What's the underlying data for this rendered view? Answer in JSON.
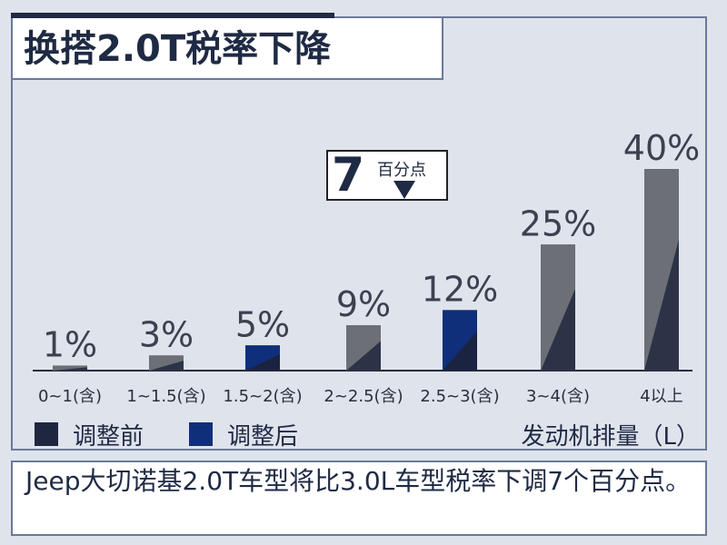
{
  "title": "换搭2.0T税率下降",
  "annotation": {
    "value": "7",
    "unit": "百分点"
  },
  "legend": [
    {
      "label": "调整前",
      "color": "#1f2740"
    },
    {
      "label": "调整后",
      "color": "#0f2f7a"
    }
  ],
  "x_axis_label": "发动机排量（L）",
  "caption": "Jeep大切诺基2.0T车型将比3.0L车型税率下调7个百分点。",
  "chart_data": {
    "type": "bar",
    "categories": [
      "0~1(含)",
      "1~1.5(含)",
      "1.5~2(含)",
      "2~2.5(含)",
      "2.5~3(含)",
      "3~4(含)",
      "4以上"
    ],
    "values": [
      1,
      3,
      5,
      9,
      12,
      25,
      40
    ],
    "data_labels": [
      "1%",
      "3%",
      "5%",
      "9%",
      "12%",
      "25%",
      "40%"
    ],
    "highlight": [
      false,
      false,
      true,
      false,
      true,
      false,
      false
    ],
    "xlabel": "发动机排量（L）",
    "ylabel": "",
    "legend": [
      "调整前",
      "调整后"
    ],
    "colors": {
      "bar_dark": "#2c3346",
      "bar_light": "#6c6f76",
      "bar_highlight": "#0f2f7a",
      "bar_highlight_dark": "#1a2340"
    }
  }
}
